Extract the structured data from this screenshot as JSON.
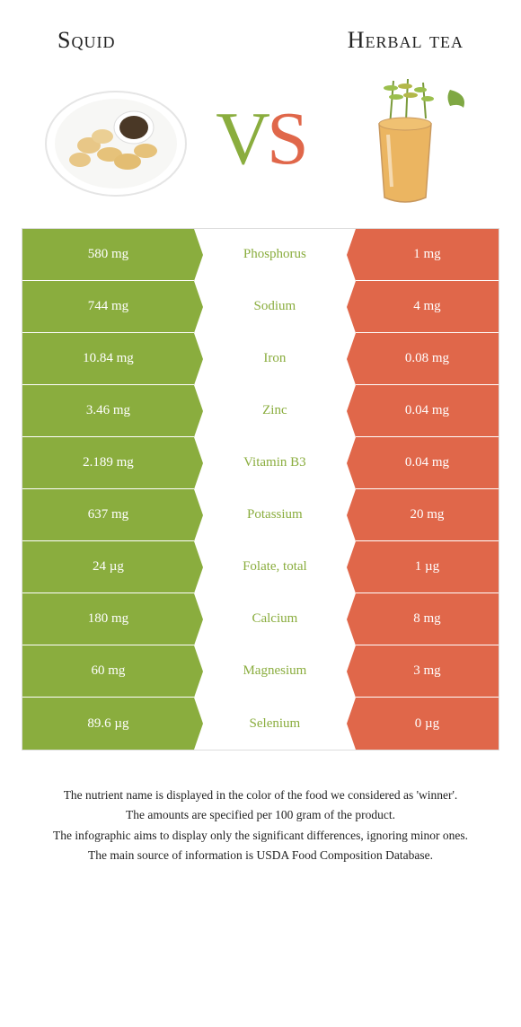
{
  "comparison": {
    "left_title": "Squid",
    "right_title": "Herbal tea",
    "vs_v": "V",
    "vs_s": "S",
    "colors": {
      "left": "#8aad3e",
      "right": "#e0674a",
      "border": "#dddddd",
      "background": "#ffffff"
    },
    "rows": [
      {
        "left": "580 mg",
        "label": "Phosphorus",
        "right": "1 mg",
        "winner": "left"
      },
      {
        "left": "744 mg",
        "label": "Sodium",
        "right": "4 mg",
        "winner": "left"
      },
      {
        "left": "10.84 mg",
        "label": "Iron",
        "right": "0.08 mg",
        "winner": "left"
      },
      {
        "left": "3.46 mg",
        "label": "Zinc",
        "right": "0.04 mg",
        "winner": "left"
      },
      {
        "left": "2.189 mg",
        "label": "Vitamin B3",
        "right": "0.04 mg",
        "winner": "left"
      },
      {
        "left": "637 mg",
        "label": "Potassium",
        "right": "20 mg",
        "winner": "left"
      },
      {
        "left": "24 µg",
        "label": "Folate, total",
        "right": "1 µg",
        "winner": "left"
      },
      {
        "left": "180 mg",
        "label": "Calcium",
        "right": "8 mg",
        "winner": "left"
      },
      {
        "left": "60 mg",
        "label": "Magnesium",
        "right": "3 mg",
        "winner": "left"
      },
      {
        "left": "89.6 µg",
        "label": "Selenium",
        "right": "0 µg",
        "winner": "left"
      }
    ]
  },
  "footer": {
    "line1": "The nutrient name is displayed in the color of the food we considered as 'winner'.",
    "line2": "The amounts are specified per 100 gram of the product.",
    "line3": "The infographic aims to display only the significant differences, ignoring minor ones.",
    "line4": "The main source of information is USDA Food Composition Database."
  }
}
